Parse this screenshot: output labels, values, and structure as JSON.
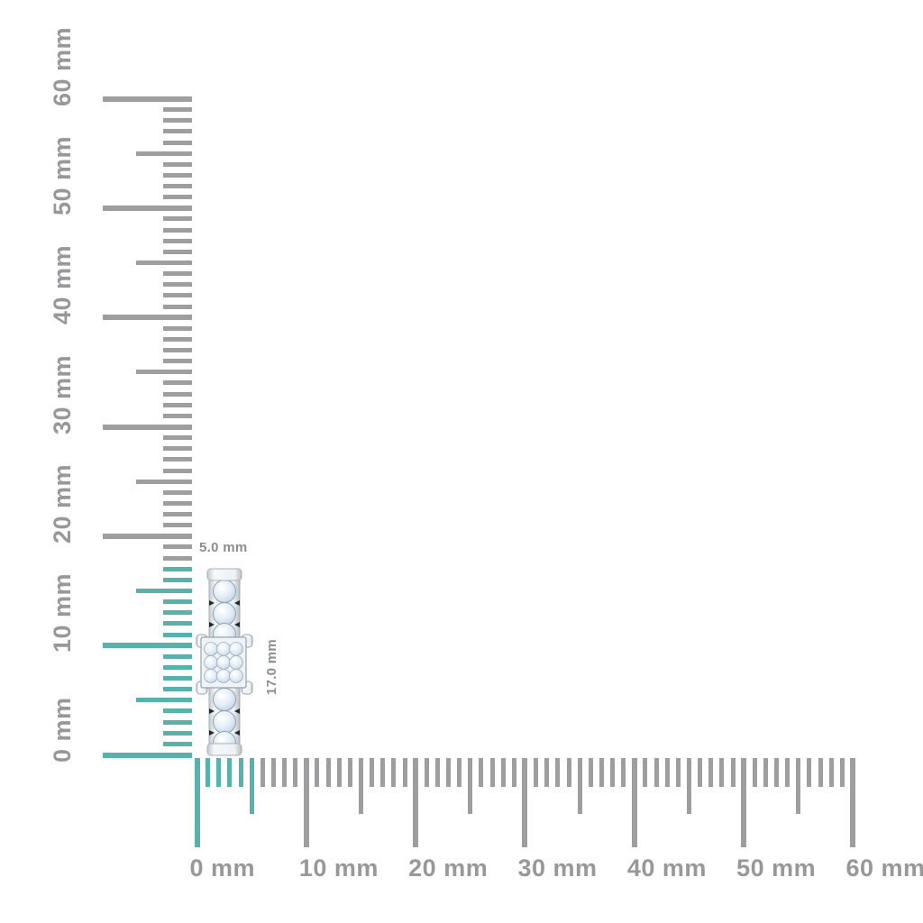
{
  "page": {
    "background": "#ffffff"
  },
  "colors": {
    "highlight_teal": "#58b2ac",
    "tick_gray": "#9e9ea0",
    "label_gray": "#98989a",
    "dim_label_gray": "#8d8d90"
  },
  "vertical_ruler": {
    "unit": "mm",
    "min_mm": 0,
    "max_mm": 60,
    "major_step_mm": 10,
    "minor_step_mm": 1,
    "labels": [
      "0 mm",
      "10 mm",
      "20 mm",
      "30 mm",
      "40 mm",
      "50 mm",
      "60 mm"
    ],
    "highlighted_extent_mm": 17
  },
  "horizontal_ruler": {
    "unit": "mm",
    "min_mm": 0,
    "max_mm": 60,
    "major_step_mm": 10,
    "minor_step_mm": 1,
    "labels": [
      "0 mm",
      "10 mm",
      "20 mm",
      "30 mm",
      "40 mm",
      "50 mm",
      "60 mm"
    ],
    "highlighted_extent_mm": 5
  },
  "item": {
    "description": "diamond ring band side view with square princess-cut cluster",
    "height_label": "17.0 mm",
    "width_label": "5.0 mm"
  }
}
